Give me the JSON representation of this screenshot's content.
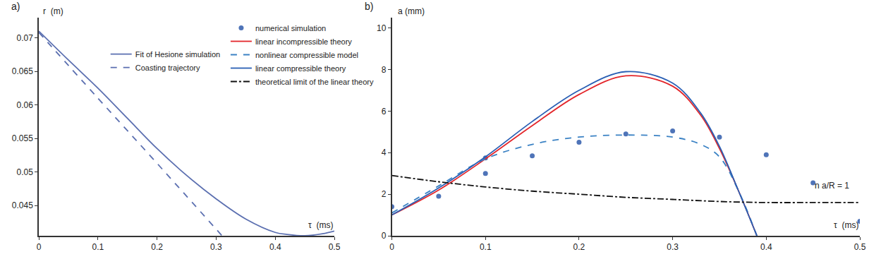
{
  "chart_data": [
    {
      "type": "line",
      "panel": "a)",
      "xlabel": "τ  (ms)",
      "ylabel": "r  (m)",
      "xlim": [
        0,
        0.5
      ],
      "xticks": [
        0,
        0.1,
        0.2,
        0.3,
        0.4,
        0.5
      ],
      "ylim": [
        0.0405,
        0.073
      ],
      "yticks": [
        0.045,
        0.05,
        0.055,
        0.06,
        0.065,
        0.07
      ],
      "grid": false,
      "legend": "top right",
      "series": [
        {
          "name": "Fit of Hesione simulation",
          "color": "#5b6fb0",
          "line_style": "solid",
          "x": [
            0,
            0.05,
            0.1,
            0.15,
            0.2,
            0.25,
            0.3,
            0.35,
            0.4,
            0.42,
            0.45,
            0.48,
            0.5
          ],
          "values": [
            0.071,
            0.0667,
            0.0625,
            0.058,
            0.0535,
            0.0495,
            0.046,
            0.043,
            0.041,
            0.0407,
            0.0405,
            0.0408,
            0.0412
          ]
        },
        {
          "name": "Coasting trajectory",
          "color": "#5b6fb0",
          "line_style": "dash",
          "x": [
            0,
            0.1,
            0.2,
            0.31
          ],
          "values": [
            0.0708,
            0.061,
            0.0513,
            0.0405
          ]
        }
      ]
    },
    {
      "type": "line",
      "panel": "b)",
      "xlabel": "τ  (ms)",
      "ylabel": "a (mm)",
      "xlim": [
        0,
        0.5
      ],
      "xticks": [
        0,
        0.1,
        0.2,
        0.3,
        0.4,
        0.5
      ],
      "ylim": [
        0,
        10.5
      ],
      "yticks": [
        0,
        2,
        4,
        6,
        8,
        10
      ],
      "grid": false,
      "legend": "top",
      "annotations": [
        {
          "text": "n a/R = 1",
          "x": 0.47,
          "y": 2.4
        }
      ],
      "series": [
        {
          "name": "numerical simulation",
          "type": "scatter",
          "marker": "circle",
          "color": "#4f74b8",
          "x": [
            0,
            0.05,
            0.1,
            0.1,
            0.15,
            0.2,
            0.25,
            0.3,
            0.35,
            0.4,
            0.45,
            0.5
          ],
          "values": [
            1.4,
            1.9,
            3.75,
            3.0,
            3.85,
            4.5,
            4.9,
            5.05,
            4.75,
            3.9,
            2.55,
            0.7
          ]
        },
        {
          "name": "linear incompressible theory",
          "color": "#e3262b",
          "line_style": "solid",
          "x": [
            0,
            0.05,
            0.1,
            0.15,
            0.2,
            0.25,
            0.3,
            0.33,
            0.35,
            0.37,
            0.39
          ],
          "values": [
            1.0,
            2.2,
            3.7,
            5.3,
            6.8,
            7.7,
            7.2,
            5.8,
            4.2,
            2.2,
            0
          ]
        },
        {
          "name": "nonlinear compressible model",
          "color": "#3b82c4",
          "line_style": "dash",
          "x": [
            0,
            0.05,
            0.1,
            0.15,
            0.2,
            0.25,
            0.3,
            0.33,
            0.35,
            0.37,
            0.39
          ],
          "values": [
            1.1,
            2.4,
            3.7,
            4.4,
            4.75,
            4.85,
            4.75,
            4.4,
            3.8,
            2.2,
            0
          ]
        },
        {
          "name": "linear compressible theory",
          "color": "#2a5fb4",
          "line_style": "solid",
          "x": [
            0,
            0.05,
            0.1,
            0.15,
            0.2,
            0.25,
            0.3,
            0.33,
            0.35,
            0.37,
            0.39
          ],
          "values": [
            1.0,
            2.3,
            3.8,
            5.5,
            7.0,
            7.9,
            7.35,
            5.9,
            4.3,
            2.2,
            0
          ]
        },
        {
          "name": "theoretical limit of the linear theory",
          "color": "#111111",
          "line_style": "dashdot",
          "x": [
            0,
            0.05,
            0.1,
            0.15,
            0.2,
            0.25,
            0.3,
            0.35,
            0.4,
            0.45,
            0.5
          ],
          "values": [
            2.9,
            2.6,
            2.35,
            2.15,
            2.0,
            1.85,
            1.75,
            1.65,
            1.6,
            1.6,
            1.6
          ]
        }
      ]
    }
  ]
}
